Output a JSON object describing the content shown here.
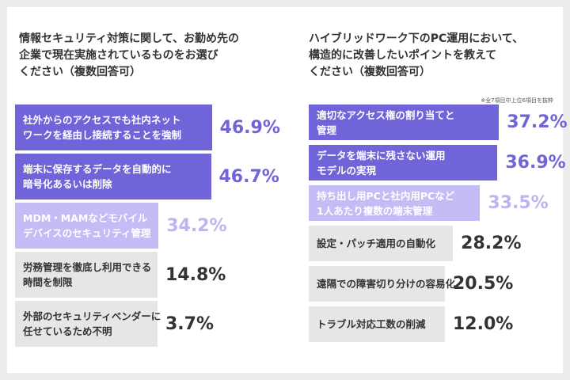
{
  "chart_data": [
    {
      "type": "bar",
      "orientation": "horizontal",
      "unit": "%",
      "title": "情報セキュリティ対策に関して、お勤め先の\n企業で現在実施されているものをお選び\nください（複数回答可）",
      "categories": [
        "社外からのアクセスでも社内ネット\nワークを経由し接続することを強制",
        "端末に保存するデータを自動的に\n暗号化あるいは削除",
        "MDM・MAMなどモバイル\nデバイスのセキュリティ管理",
        "労務管理を徹底し利用できる\n時間を制限",
        "外部のセキュリティベンダーに\n任せているため不明"
      ],
      "values": [
        46.9,
        46.7,
        34.2,
        14.8,
        3.7
      ],
      "value_labels": [
        "46.9%",
        "46.7%",
        "34.2%",
        "14.8%",
        "3.7%"
      ],
      "tiers": [
        "high",
        "high",
        "mid",
        "low",
        "low"
      ]
    },
    {
      "type": "bar",
      "orientation": "horizontal",
      "unit": "%",
      "title": "ハイブリッドワーク下のPC運用において、\n構造的に改善したいポイントを教えて\nください（複数回答可）",
      "note": "※全7項目中上位6項目を抜粋",
      "categories": [
        "適切なアクセス権の割り当てと\n管理",
        "データを端末に残さない運用\nモデルの実現",
        "持ち出し用PCと社内用PCなど\n1人あたり複数の端末管理",
        "設定・パッチ適用の自動化",
        "遠隔での障害切り分けの容易化",
        "トラブル対応工数の削減"
      ],
      "values": [
        37.2,
        36.9,
        33.5,
        28.2,
        20.5,
        12.0
      ],
      "value_labels": [
        "37.2%",
        "36.9%",
        "33.5%",
        "28.2%",
        "20.5%",
        "12.0%"
      ],
      "tiers": [
        "high",
        "high",
        "mid",
        "low",
        "low",
        "low"
      ]
    }
  ],
  "colors": {
    "bar_high": "#6f64d8",
    "bar_mid": "#c4bcf4",
    "bar_low": "#e6e6e6",
    "label_on_high": "#ffffff",
    "label_on_mid": "#ffffff",
    "label_on_low": "#333333",
    "value_high": "#6f64d8",
    "value_mid": "#bdb4f0",
    "value_low": "#333333",
    "title": "#333333"
  }
}
